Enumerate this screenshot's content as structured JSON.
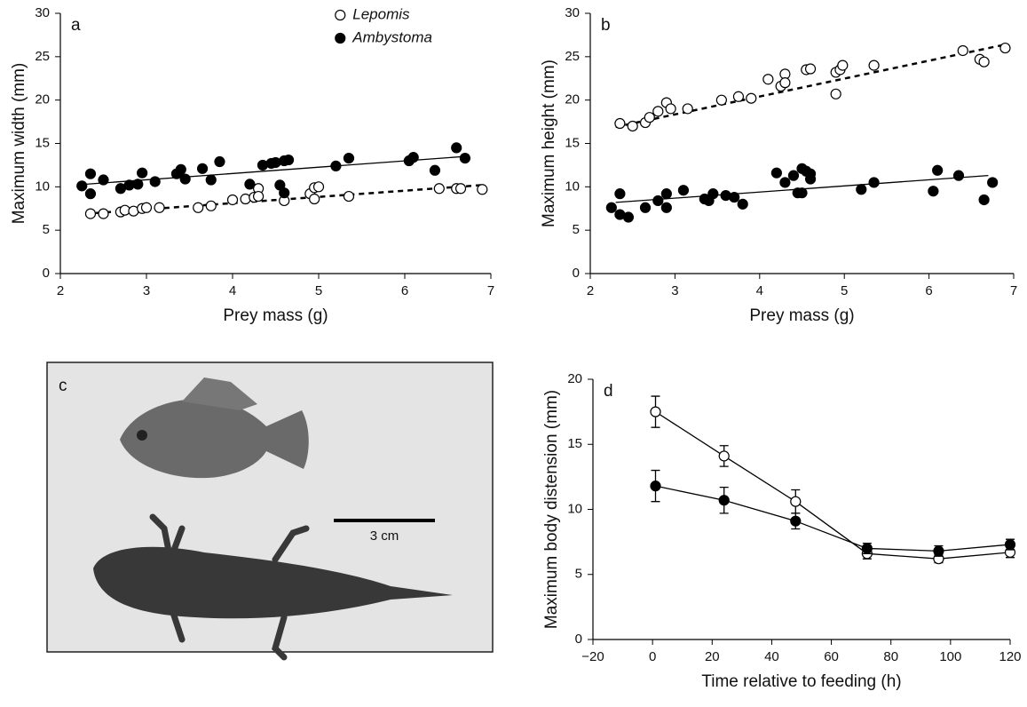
{
  "chart_data": [
    {
      "type": "scatter",
      "panel_label": "a",
      "x_label": "Prey mass (g)",
      "y_label": "Maximum width (mm)",
      "xlim": [
        2,
        7
      ],
      "xticks": [
        2,
        3,
        4,
        5,
        6,
        7
      ],
      "ylim": [
        0,
        30
      ],
      "yticks": [
        0,
        5,
        10,
        15,
        20,
        25,
        30
      ],
      "legend": "top-center",
      "series": [
        {
          "name": "Lepomis",
          "marker": "open",
          "color": "#000000",
          "x": [
            2.35,
            2.5,
            2.7,
            2.75,
            2.85,
            2.95,
            3.0,
            3.15,
            3.6,
            3.75,
            4.0,
            4.15,
            4.25,
            4.3,
            4.3,
            4.6,
            4.9,
            4.95,
            4.95,
            5.0,
            5.35,
            6.4,
            6.6,
            6.65,
            6.9
          ],
          "values": [
            6.9,
            6.9,
            7.1,
            7.3,
            7.2,
            7.5,
            7.6,
            7.6,
            7.6,
            7.8,
            8.5,
            8.6,
            8.8,
            9.8,
            8.9,
            8.4,
            9.2,
            8.6,
            9.9,
            10.0,
            8.9,
            9.8,
            9.8,
            9.8,
            9.7
          ],
          "trend": {
            "x": [
              2.3,
              6.9
            ],
            "values": [
              6.9,
              10.2
            ],
            "style": "dashed"
          }
        },
        {
          "name": "Ambystoma",
          "marker": "filled",
          "color": "#000000",
          "x": [
            2.25,
            2.35,
            2.35,
            2.5,
            2.7,
            2.8,
            2.9,
            2.95,
            3.1,
            3.35,
            3.4,
            3.45,
            3.65,
            3.75,
            3.85,
            4.2,
            4.35,
            4.45,
            4.5,
            4.6,
            4.65,
            4.55,
            4.6,
            5.2,
            5.35,
            6.05,
            6.1,
            6.35,
            6.6,
            6.7
          ],
          "values": [
            10.1,
            9.2,
            11.5,
            10.8,
            9.8,
            10.2,
            10.3,
            11.6,
            10.6,
            11.5,
            12.0,
            10.9,
            12.1,
            10.8,
            12.9,
            10.3,
            12.5,
            12.7,
            12.8,
            13.0,
            13.1,
            10.2,
            9.3,
            12.4,
            13.3,
            13.0,
            13.4,
            11.9,
            14.5,
            13.3
          ],
          "trend": {
            "x": [
              2.3,
              6.7
            ],
            "values": [
              10.3,
              13.5
            ],
            "style": "solid"
          }
        }
      ]
    },
    {
      "type": "scatter",
      "panel_label": "b",
      "x_label": "Prey mass (g)",
      "y_label": "Maximum height (mm)",
      "xlim": [
        2,
        7
      ],
      "xticks": [
        2,
        3,
        4,
        5,
        6,
        7
      ],
      "ylim": [
        0,
        30
      ],
      "yticks": [
        0,
        5,
        10,
        15,
        20,
        25,
        30
      ],
      "series": [
        {
          "marker": "open",
          "color": "#000000",
          "x": [
            2.35,
            2.5,
            2.65,
            2.7,
            2.8,
            2.9,
            2.95,
            3.15,
            3.55,
            3.75,
            3.9,
            4.1,
            4.25,
            4.3,
            4.3,
            4.55,
            4.6,
            4.9,
            4.9,
            4.95,
            4.98,
            5.35,
            6.4,
            6.6,
            6.65,
            6.9
          ],
          "values": [
            17.3,
            17.0,
            17.4,
            18.0,
            18.7,
            19.7,
            19.0,
            19.0,
            20.0,
            20.4,
            20.2,
            22.4,
            21.6,
            23.0,
            22.0,
            23.5,
            23.6,
            20.7,
            23.2,
            23.5,
            24.0,
            24.0,
            25.7,
            24.7,
            24.4,
            26.0
          ],
          "trend": {
            "x": [
              2.3,
              6.9
            ],
            "values": [
              16.9,
              26.4
            ],
            "style": "dashed"
          }
        },
        {
          "marker": "filled",
          "color": "#000000",
          "x": [
            2.25,
            2.35,
            2.35,
            2.45,
            2.65,
            2.8,
            2.9,
            2.9,
            3.1,
            3.35,
            3.4,
            3.45,
            3.6,
            3.7,
            3.8,
            4.2,
            4.3,
            4.4,
            4.45,
            4.5,
            4.5,
            4.55,
            4.6,
            4.6,
            5.2,
            5.35,
            6.05,
            6.1,
            6.35,
            6.65,
            6.75
          ],
          "values": [
            7.6,
            9.2,
            6.8,
            6.5,
            7.6,
            8.4,
            9.2,
            7.6,
            9.6,
            8.6,
            8.4,
            9.2,
            9.0,
            8.8,
            8.0,
            11.6,
            10.5,
            11.3,
            9.3,
            9.3,
            12.1,
            11.8,
            11.5,
            10.9,
            9.7,
            10.5,
            9.5,
            11.9,
            11.3,
            8.5,
            10.5
          ],
          "trend": {
            "x": [
              2.3,
              6.7
            ],
            "values": [
              8.2,
              11.3
            ],
            "style": "solid"
          }
        }
      ]
    },
    {
      "type": "line",
      "panel_label": "d",
      "x_label": "Time relative to feeding (h)",
      "y_label": "Maximum body distension (mm)",
      "xlim": [
        -20,
        120
      ],
      "xticks": [
        {
          "value": -20,
          "label": "−20"
        },
        0,
        20,
        40,
        60,
        80,
        100,
        120
      ],
      "ylim": [
        0,
        20
      ],
      "yticks": [
        0,
        5,
        10,
        15,
        20
      ],
      "series": [
        {
          "marker": "open",
          "color": "#000000",
          "x": [
            1,
            24,
            48,
            72,
            96,
            120
          ],
          "values": [
            17.5,
            14.1,
            10.6,
            6.6,
            6.2,
            6.7
          ],
          "errors": [
            1.2,
            0.8,
            0.9,
            0.4,
            0.3,
            0.4
          ]
        },
        {
          "marker": "filled",
          "color": "#000000",
          "x": [
            1,
            24,
            48,
            72,
            96,
            120
          ],
          "values": [
            11.8,
            10.7,
            9.1,
            7.0,
            6.8,
            7.3
          ],
          "errors": [
            1.2,
            1.0,
            0.6,
            0.4,
            0.4,
            0.4
          ]
        }
      ]
    }
  ],
  "photo": {
    "panel_label": "c",
    "scale_bar": "3 cm"
  }
}
